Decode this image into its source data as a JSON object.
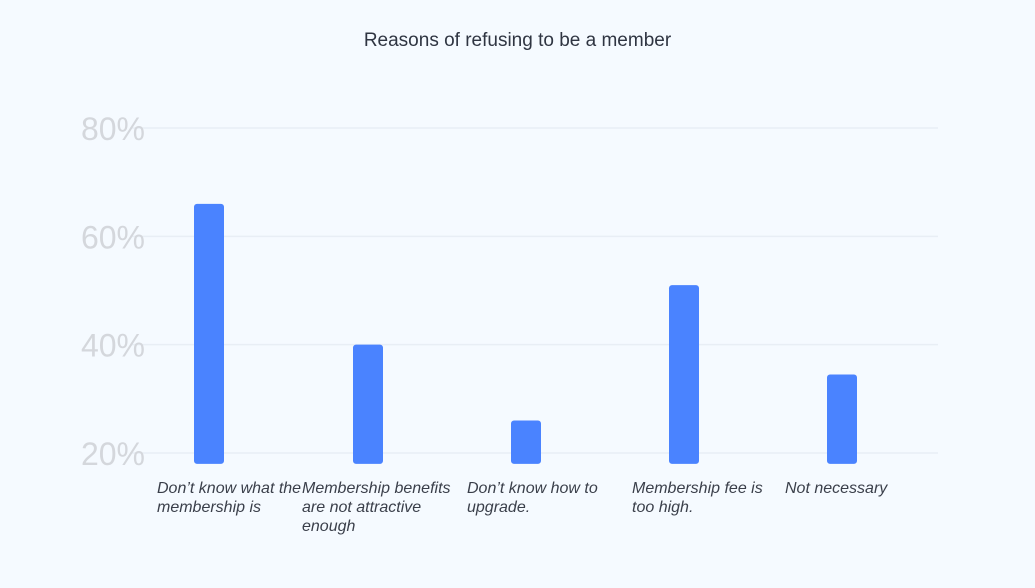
{
  "chart_data": {
    "type": "bar",
    "title": "Reasons of refusing to be a member",
    "categories": [
      "Don’t know what the membership is",
      "Membership benefits are not attractive enough",
      "Don’t know how to upgrade.",
      "Membership fee is too high.",
      "Not necessary"
    ],
    "values": [
      66,
      40,
      26,
      51,
      34.5
    ],
    "ylim": [
      18,
      80
    ],
    "y_ticks": [
      "20%",
      "40%",
      "60%",
      "80%"
    ],
    "y_tick_values": [
      20,
      40,
      60,
      80
    ],
    "xlabel": "",
    "ylabel": "",
    "grid": true,
    "legend": "none",
    "colors": {
      "bar": "#4a83ff",
      "grid": "#e8eef5",
      "tick_text": "#d4d7dc",
      "background": "#f5faff"
    }
  }
}
